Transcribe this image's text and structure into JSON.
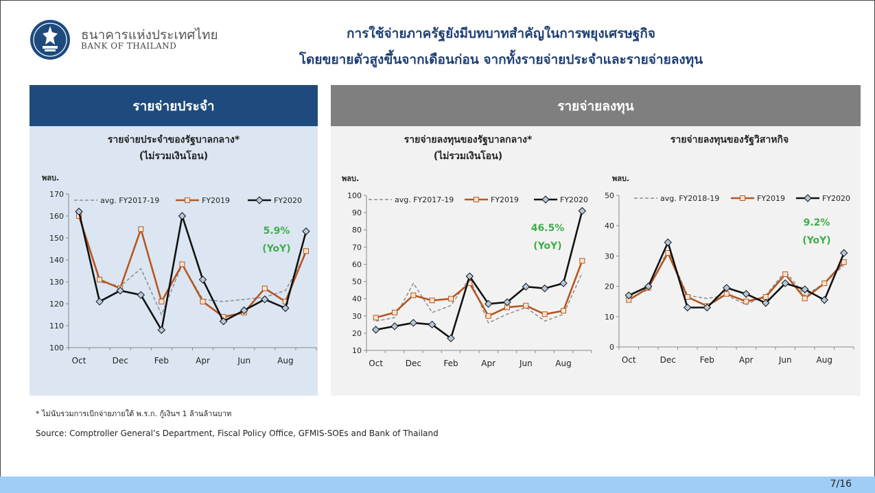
{
  "header": {
    "bank_name_th": "ธนาคารแห่งประเทศไทย",
    "bank_name_en": "BANK OF THAILAND",
    "title_line1": "การใช้จ่ายภาครัฐยังมีบทบาทสำคัญในการพยุงเศรษฐกิจ",
    "title_line2": "โดยขยายตัวสูงขึ้นจากเดือนก่อน จากทั้งรายจ่ายประจำและรายจ่ายลงทุน"
  },
  "panels": {
    "current_label": "รายจ่ายประจำ",
    "capital_label": "รายจ่ายลงทุน"
  },
  "footnote": "* ไม่นับรวมการเบิกจ่ายภายใต้ พ.ร.ก. กู้เงินฯ 1 ล้านล้านบาท",
  "source": "Source: Comptroller General’s Department, Fiscal Policy Office, GFMIS-SOEs and Bank of Thailand",
  "page_number": "7/16",
  "colors": {
    "avg": "#8c8c8c",
    "fy2019": "#b5561f",
    "fy2020": "#111111",
    "annotation": "#3fae49",
    "panel_current": "#1e4a7e",
    "panel_capital": "#7f7f7f"
  },
  "chart_data": [
    {
      "type": "line",
      "title_line1": "รายจ่ายประจำของรัฐบาลกลาง*",
      "title_line2": "(ไม่รวมเงินโอน)",
      "ylabel": "พลบ.",
      "ylim": [
        100,
        170
      ],
      "yticks": [
        100,
        110,
        120,
        130,
        140,
        150,
        160,
        170
      ],
      "x_labels": [
        "Oct",
        "Dec",
        "Feb",
        "Apr",
        "Jun",
        "Aug"
      ],
      "annotation_value": "5.9%",
      "annotation_yoy": "(YoY)",
      "legend_position": "top",
      "series": [
        {
          "name": "avg. FY2017-19",
          "style": "dashed",
          "values": [
            160,
            130,
            128,
            136,
            115,
            138,
            122,
            121,
            122,
            123,
            126,
            143
          ]
        },
        {
          "name": "FY2019",
          "style": "square",
          "values": [
            160,
            131,
            127,
            154,
            121,
            138,
            121,
            114,
            116,
            127,
            121,
            144
          ]
        },
        {
          "name": "FY2020",
          "style": "diamond",
          "values": [
            162,
            121,
            126,
            124,
            108,
            160,
            131,
            112,
            117,
            122,
            118,
            153
          ]
        }
      ]
    },
    {
      "type": "line",
      "title_line1": "รายจ่ายลงทุนของรัฐบาลกลาง*",
      "title_line2": "(ไม่รวมเงินโอน)",
      "ylabel": "พลบ.",
      "ylim": [
        10,
        100
      ],
      "yticks": [
        10,
        20,
        30,
        40,
        50,
        60,
        70,
        80,
        90,
        100
      ],
      "x_labels": [
        "Oct",
        "Dec",
        "Feb",
        "Apr",
        "Jun",
        "Aug"
      ],
      "annotation_value": "46.5%",
      "annotation_yoy": "(YoY)",
      "legend_position": "top",
      "series": [
        {
          "name": "avg. FY2017-19",
          "style": "dashed",
          "values": [
            27,
            29,
            49,
            32,
            36,
            52,
            26,
            31,
            35,
            27,
            31,
            55
          ]
        },
        {
          "name": "FY2019",
          "style": "square",
          "values": [
            29,
            32,
            42,
            39,
            40,
            49,
            30,
            35,
            36,
            31,
            33,
            62
          ]
        },
        {
          "name": "FY2020",
          "style": "diamond",
          "values": [
            22,
            24,
            26,
            25,
            17,
            53,
            37,
            38,
            47,
            46,
            49,
            91
          ]
        }
      ]
    },
    {
      "type": "line",
      "title_line1": "รายจ่ายลงทุนของรัฐวิสาหกิจ",
      "title_line2": "",
      "ylabel": "พลบ.",
      "ylim": [
        0,
        50
      ],
      "yticks": [
        0,
        10,
        20,
        30,
        40,
        50
      ],
      "x_labels": [
        "Oct",
        "Dec",
        "Feb",
        "Apr",
        "Jun",
        "Aug"
      ],
      "annotation_value": "9.2%",
      "annotation_yoy": "(YoY)",
      "legend_position": "top",
      "series": [
        {
          "name": "avg. FY2018-19",
          "style": "dashed",
          "values": [
            16,
            19,
            32,
            17,
            16,
            17,
            14,
            17,
            25,
            17,
            21,
            27
          ]
        },
        {
          "name": "FY2019",
          "style": "square",
          "values": [
            15.5,
            19.5,
            31,
            16.5,
            13.5,
            17.5,
            15,
            16.5,
            24,
            16,
            21,
            28
          ]
        },
        {
          "name": "FY2020",
          "style": "diamond",
          "values": [
            17,
            20,
            34.5,
            13,
            13,
            19.5,
            17.5,
            14.5,
            21,
            19,
            15.5,
            31
          ]
        }
      ]
    }
  ]
}
